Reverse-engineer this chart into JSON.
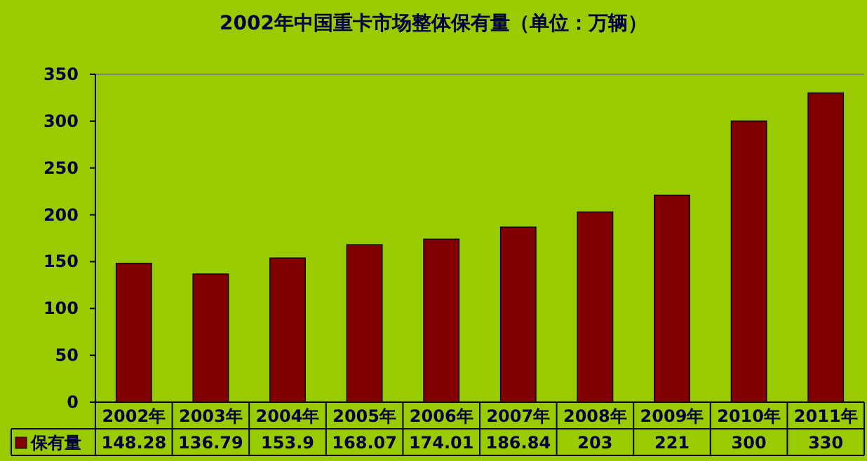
{
  "chart_data": {
    "type": "bar",
    "title": "2002年中国重卡市场整体保有量（单位：万辆）",
    "categories": [
      "2002年",
      "2003年",
      "2004年",
      "2005年",
      "2006年",
      "2007年",
      "2008年",
      "2009年",
      "2010年",
      "2011年"
    ],
    "series": [
      {
        "name": "保有量",
        "color": "#800000",
        "values": [
          148.28,
          136.79,
          153.9,
          168.07,
          174.01,
          186.84,
          203,
          221,
          300,
          330
        ]
      }
    ],
    "ylim": [
      0,
      350
    ],
    "yticks": [
      0,
      50,
      100,
      150,
      200,
      250,
      300,
      350
    ],
    "data_labels": true,
    "legend": "bottom",
    "grid": false
  }
}
